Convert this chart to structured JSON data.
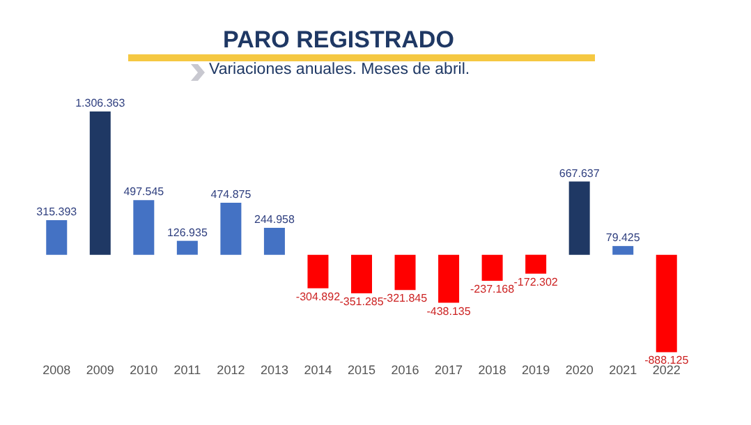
{
  "chart_data": {
    "type": "bar",
    "title": "PARO REGISTRADO",
    "subtitle": "Variaciones anuales. Meses de abril.",
    "categories": [
      "2008",
      "2009",
      "2010",
      "2011",
      "2012",
      "2013",
      "2014",
      "2015",
      "2016",
      "2017",
      "2018",
      "2019",
      "2020",
      "2021",
      "2022"
    ],
    "values": [
      315393,
      1306363,
      497545,
      126935,
      474875,
      244958,
      -304892,
      -351285,
      -321845,
      -438135,
      -237168,
      -172302,
      667637,
      79425,
      -888125
    ],
    "colors": [
      "#4472c4",
      "#1f3864",
      "#4472c4",
      "#4472c4",
      "#4472c4",
      "#4472c4",
      "#ff0000",
      "#ff0000",
      "#ff0000",
      "#ff0000",
      "#ff0000",
      "#ff0000",
      "#1f3864",
      "#4472c4",
      "#ff0000"
    ],
    "value_labels": [
      "315.393",
      "1.306.363",
      "497.545",
      "126.935",
      "474.875",
      "244.958",
      "-304.892",
      "-351.285",
      "-321.845",
      "-438.135",
      "-237.168",
      "-172.302",
      "667.637",
      "79.425",
      "-888.125"
    ],
    "tick_labels": "x",
    "grid": false
  }
}
